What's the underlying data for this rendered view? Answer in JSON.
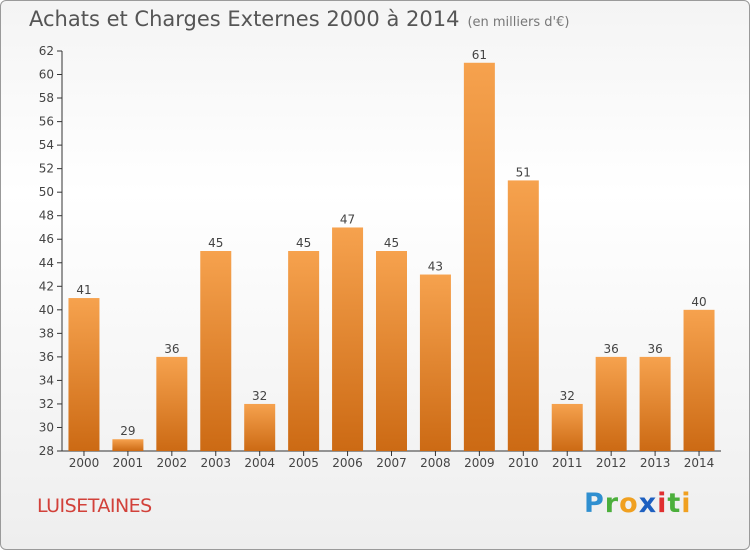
{
  "title": "Achats et Charges Externes 2000 à 2014",
  "subtitle": "(en milliers d'€)",
  "commune": "LUISETAINES",
  "logo": {
    "letters": [
      "P",
      "r",
      "o",
      "x",
      "i",
      "t",
      "i"
    ],
    "colors": [
      "#2f8fd0",
      "#4caf3c",
      "#f0a020",
      "#1e60c0",
      "#e03030",
      "#4caf3c",
      "#f0a020"
    ]
  },
  "chart_data": {
    "type": "bar",
    "categories": [
      "2000",
      "2001",
      "2002",
      "2003",
      "2004",
      "2005",
      "2006",
      "2007",
      "2008",
      "2009",
      "2010",
      "2011",
      "2012",
      "2013",
      "2014"
    ],
    "values": [
      41,
      29,
      36,
      45,
      32,
      45,
      47,
      45,
      43,
      61,
      51,
      32,
      36,
      36,
      40
    ],
    "ylim": [
      28,
      62
    ],
    "yticks": [
      28,
      30,
      32,
      34,
      36,
      38,
      40,
      42,
      44,
      46,
      48,
      50,
      52,
      54,
      56,
      58,
      60,
      62
    ],
    "grid": false,
    "colors": {
      "bar_light": "#f6a24e",
      "bar_dark": "#cc6a14",
      "axis": "#333333",
      "text": "#444444"
    }
  }
}
